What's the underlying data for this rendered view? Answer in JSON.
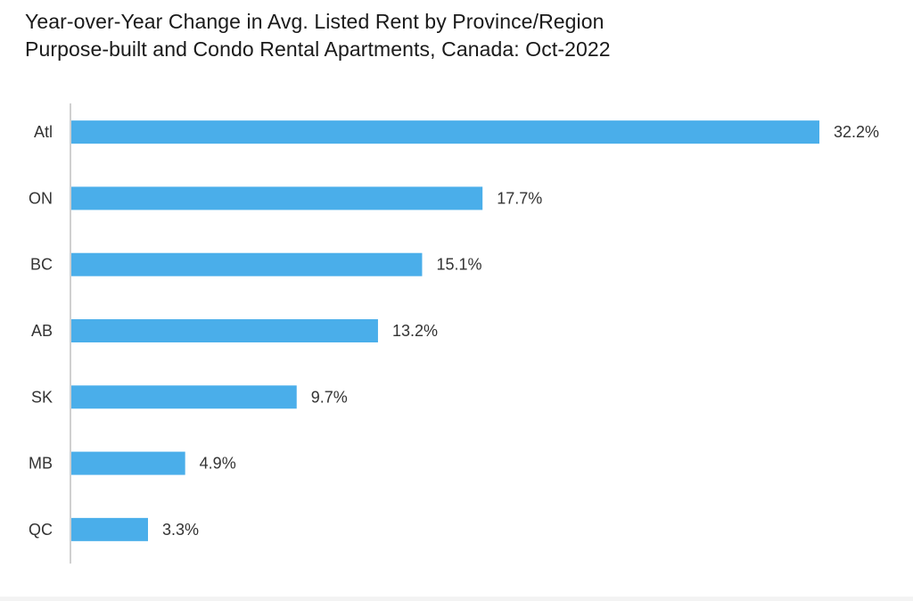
{
  "title": "Year-over-Year Change in Avg. Listed Rent by Province/Region",
  "subtitle": "Purpose-built and Condo Rental Apartments, Canada: Oct-2022",
  "colors": {
    "bar": "#4aaeea",
    "axis": "#d0d0d0",
    "text": "#333333"
  },
  "chart_data": {
    "type": "bar",
    "orientation": "horizontal",
    "title": "Year-over-Year Change in Avg. Listed Rent by Province/Region",
    "subtitle": "Purpose-built and Condo Rental Apartments, Canada: Oct-2022",
    "categories": [
      "Atl",
      "ON",
      "BC",
      "AB",
      "SK",
      "MB",
      "QC"
    ],
    "values": [
      32.2,
      17.7,
      15.1,
      13.2,
      9.7,
      4.9,
      3.3
    ],
    "data_labels": [
      "32.2%",
      "17.7%",
      "15.1%",
      "13.2%",
      "9.7%",
      "4.9%",
      "3.3%"
    ],
    "unit": "%",
    "xlim": [
      0,
      32.2
    ],
    "grid": false,
    "legend": "none"
  }
}
